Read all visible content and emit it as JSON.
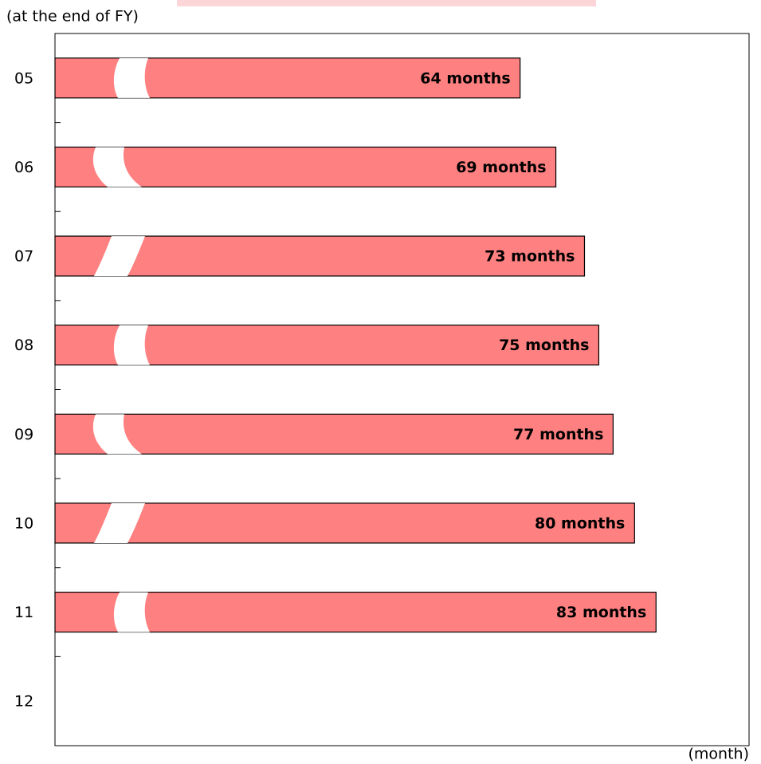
{
  "chart_data": {
    "type": "bar",
    "orientation": "horizontal",
    "y_label": "(at the end of FY)",
    "x_label": "(month)",
    "categories": [
      "05",
      "06",
      "07",
      "08",
      "09",
      "10",
      "11",
      "12"
    ],
    "values": [
      64,
      69,
      73,
      75,
      77,
      80,
      83,
      null
    ],
    "value_labels": [
      "64 months",
      "69 months",
      "73 months",
      "75 months",
      "77 months",
      "80 months",
      "83 months",
      null
    ],
    "color": "#ff8080",
    "xlim": [
      -1,
      96
    ]
  }
}
